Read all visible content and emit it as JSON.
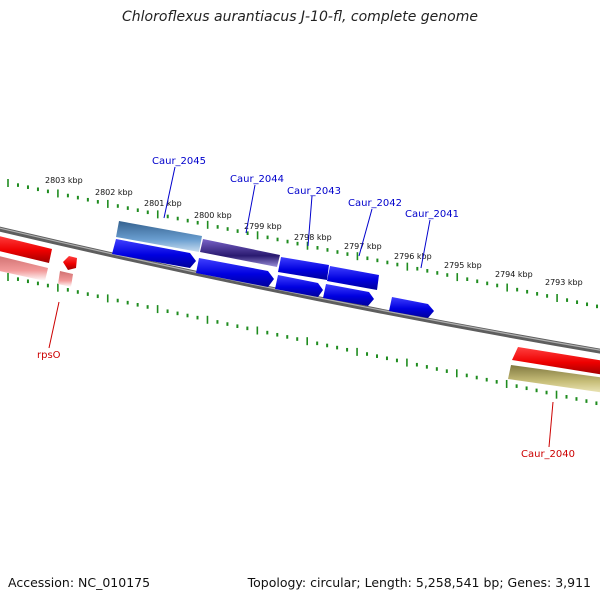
{
  "title": "Chloroflexus aurantiacus J-10-fl, complete genome",
  "accession": "Accession: NC_010175",
  "topology": "Topology: circular; Length: 5,258,541 bp; Genes: 3,911",
  "colors": {
    "backbone": "#6b6b6b",
    "ticks": "#1f8c1f",
    "forward_gene": "#0000ee",
    "reverse_gene": "#ee0000",
    "label_blue": "#0000cc",
    "label_red": "#cc0000"
  },
  "ticks_upper": [
    "2803 kbp",
    "2802 kbp",
    "2801 kbp",
    "2800 kbp",
    "2799 kbp",
    "2798 kbp",
    "2797 kbp",
    "2796 kbp",
    "2795 kbp",
    "2794 kbp",
    "2793 kbp"
  ],
  "genes_blue": [
    "Caur_2045",
    "Caur_2044",
    "Caur_2043",
    "Caur_2042",
    "Caur_2041"
  ],
  "genes_red": [
    "rpsO",
    "Caur_2040"
  ]
}
